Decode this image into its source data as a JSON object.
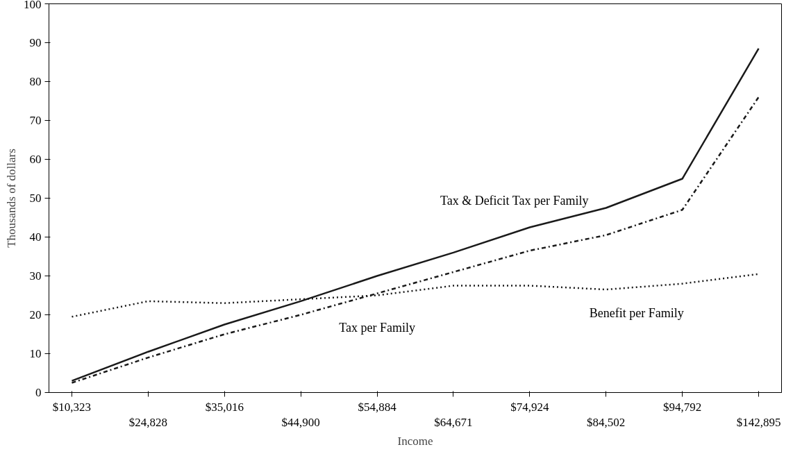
{
  "chart_data": {
    "type": "line",
    "xlabel": "Income",
    "ylabel": "Thousands of dollars",
    "categories": [
      "$10,323",
      "$24,828",
      "$35,016",
      "$44,900",
      "$54,884",
      "$64,671",
      "$74,924",
      "$84,502",
      "$94,792",
      "$142,895"
    ],
    "series": [
      {
        "name": "Tax & Deficit Tax per Family",
        "color": "#1a1a1a",
        "line_style": "solid",
        "values": [
          3,
          10.5,
          17.5,
          23.5,
          30,
          36,
          42.5,
          47.5,
          55,
          88.5
        ]
      },
      {
        "name": "Tax per Family",
        "color": "#1a1a1a",
        "line_style": "dashdot",
        "values": [
          2.5,
          9,
          15,
          20,
          25.5,
          31,
          36.5,
          40.5,
          47,
          76
        ]
      },
      {
        "name": "Benefit per Family",
        "color": "#1a1a1a",
        "line_style": "dotted",
        "values": [
          19.5,
          23.5,
          23,
          24,
          25,
          27.5,
          27.5,
          26.5,
          28,
          30.5
        ]
      }
    ],
    "ylim": [
      0,
      100
    ],
    "yticks": [
      0,
      10,
      20,
      30,
      40,
      50,
      60,
      70,
      80,
      90,
      100
    ],
    "grid": false,
    "marker": "none"
  }
}
